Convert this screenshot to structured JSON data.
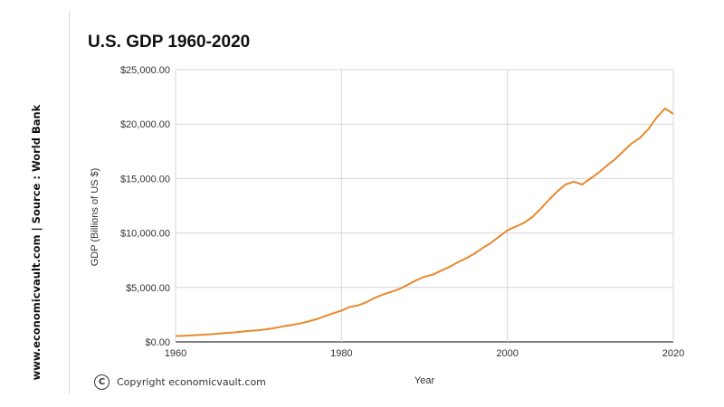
{
  "side_label": "www.economicvault.com  |  Source : World Bank",
  "copyright_symbol": "C",
  "copyright_text": "Copyright economicvault.com",
  "colors": {
    "line": "#e8892e",
    "grid": "#d6d6d6",
    "axis": "#333333"
  },
  "chart_data": {
    "type": "line",
    "title": "U.S. GDP 1960-2020",
    "xlabel": "Year",
    "ylabel": "GDP (Billions of US $)",
    "xlim": [
      1960,
      2020
    ],
    "ylim": [
      0,
      25000
    ],
    "x_ticks": [
      1960,
      1980,
      2000,
      2020
    ],
    "x_tick_labels": [
      "1960",
      "1980",
      "2000",
      "2020"
    ],
    "y_ticks": [
      0,
      5000,
      10000,
      15000,
      20000,
      25000
    ],
    "y_tick_labels": [
      "$0.00",
      "$5,000.00",
      "$10,000.00",
      "$15,000.00",
      "$20,000.00",
      "$25,000.00"
    ],
    "grid": true,
    "legend": false,
    "series": [
      {
        "x": [
          1960,
          1961,
          1962,
          1963,
          1964,
          1965,
          1966,
          1967,
          1968,
          1969,
          1970,
          1971,
          1972,
          1973,
          1974,
          1975,
          1976,
          1977,
          1978,
          1979,
          1980,
          1981,
          1982,
          1983,
          1984,
          1985,
          1986,
          1987,
          1988,
          1989,
          1990,
          1991,
          1992,
          1993,
          1994,
          1995,
          1996,
          1997,
          1998,
          1999,
          2000,
          2001,
          2002,
          2003,
          2004,
          2005,
          2006,
          2007,
          2008,
          2009,
          2010,
          2011,
          2012,
          2013,
          2014,
          2015,
          2016,
          2017,
          2018,
          2019,
          2020
        ],
        "y": [
          543,
          563,
          605,
          638,
          686,
          744,
          815,
          862,
          943,
          1020,
          1073,
          1165,
          1280,
          1429,
          1548,
          1689,
          1877,
          2086,
          2357,
          2632,
          2862,
          3211,
          3345,
          3638,
          4041,
          4347,
          4590,
          4870,
          5253,
          5658,
          5980,
          6174,
          6539,
          6879,
          7309,
          7664,
          8100,
          8609,
          9089,
          9661,
          10252,
          10582,
          10936,
          11458,
          12214,
          13037,
          13815,
          14452,
          14713,
          14449,
          14992,
          15543,
          16197,
          16785,
          17527,
          18238,
          18745,
          19543,
          20612,
          21433,
          20937
        ]
      }
    ]
  }
}
